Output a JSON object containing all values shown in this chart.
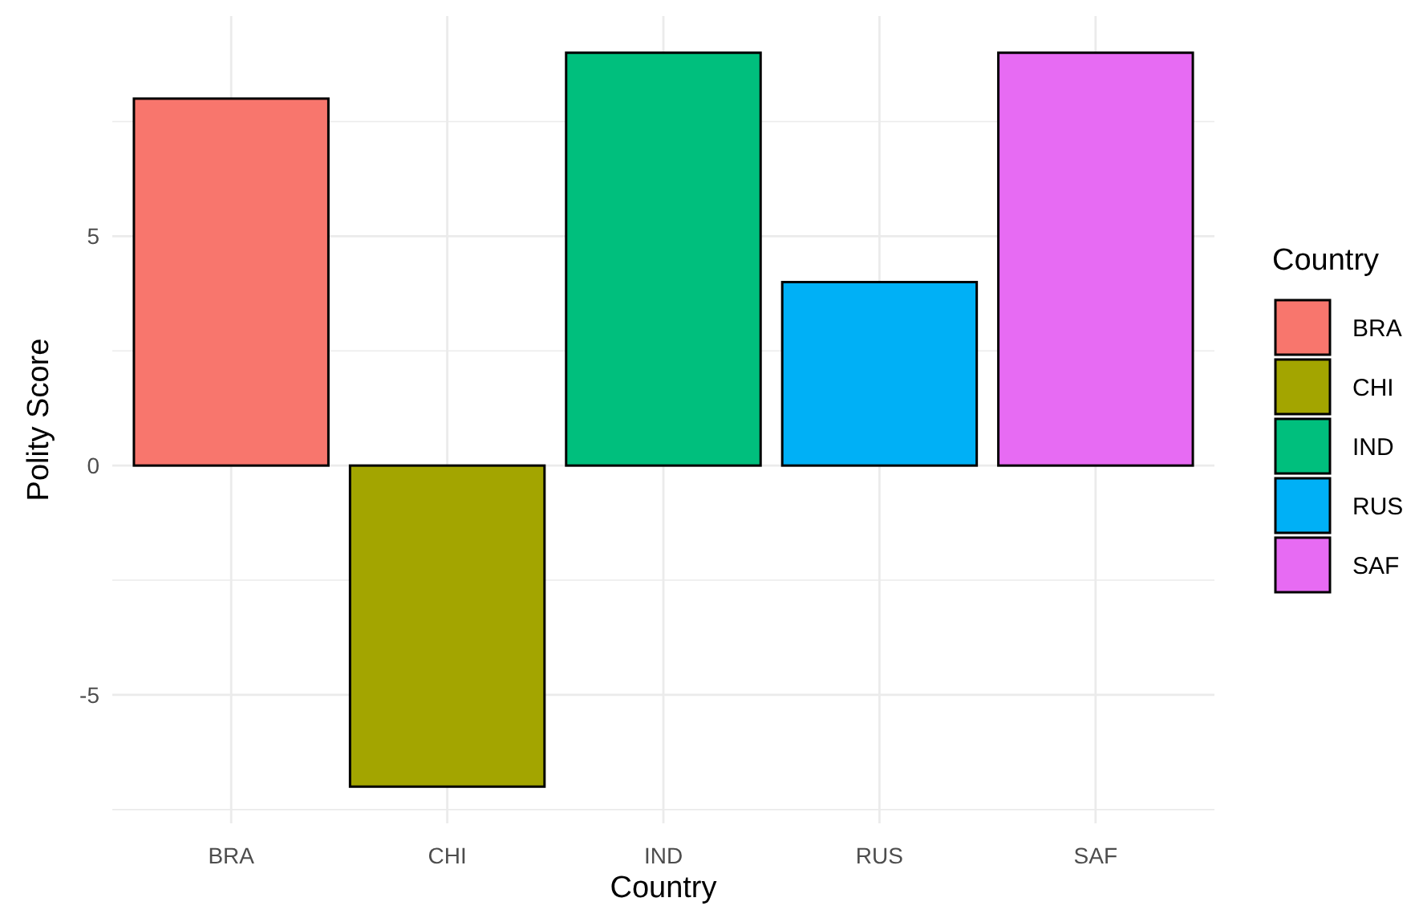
{
  "chart_data": {
    "type": "bar",
    "xlabel": "Country",
    "ylabel": "Polity Score",
    "legend_title": "Country",
    "categories": [
      "BRA",
      "CHI",
      "IND",
      "RUS",
      "SAF"
    ],
    "series": [
      {
        "name": "BRA",
        "color": "#f8766d",
        "values": [
          8,
          null,
          null,
          null,
          null
        ]
      },
      {
        "name": "CHI",
        "color": "#a3a500",
        "values": [
          null,
          -7,
          null,
          null,
          null
        ]
      },
      {
        "name": "IND",
        "color": "#00bf7d",
        "values": [
          null,
          null,
          9,
          null,
          null
        ]
      },
      {
        "name": "RUS",
        "color": "#00b0f6",
        "values": [
          null,
          null,
          null,
          4,
          null
        ]
      },
      {
        "name": "SAF",
        "color": "#e76bf3",
        "values": [
          null,
          null,
          null,
          null,
          9
        ]
      }
    ],
    "ylim": [
      -7.8,
      9.8
    ],
    "yticks": [
      {
        "value": -7.5,
        "label": null
      },
      -5,
      {
        "value": -2.5,
        "label": null
      },
      0,
      {
        "value": 2.5,
        "label": null
      },
      5,
      {
        "value": 7.5,
        "label": null
      }
    ],
    "grid": true,
    "legend": "right"
  }
}
